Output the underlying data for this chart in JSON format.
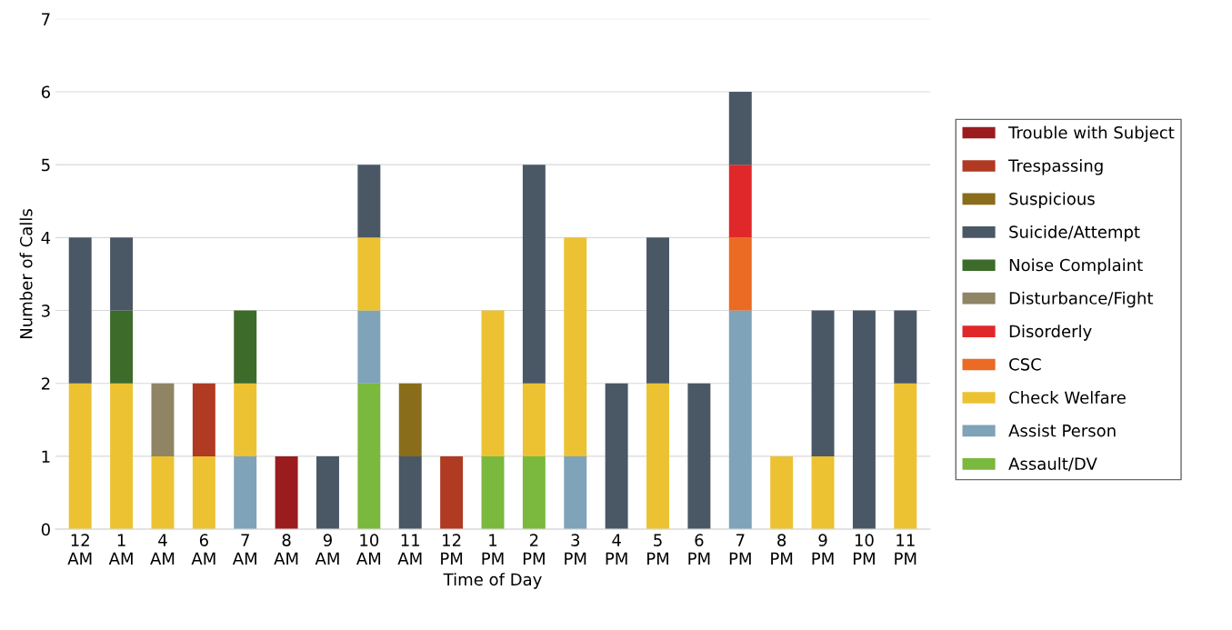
{
  "chart_data": {
    "type": "bar",
    "stacked": true,
    "xlabel": "Time of Day",
    "ylabel": "Number of Calls",
    "categories": [
      "12\nAM",
      "1\nAM",
      "4\nAM",
      "6\nAM",
      "7\nAM",
      "8\nAM",
      "9\nAM",
      "10\nAM",
      "11\nAM",
      "12\nPM",
      "1\nPM",
      "2\nPM",
      "3\nPM",
      "4\nPM",
      "5\nPM",
      "6\nPM",
      "7\nPM",
      "8\nPM",
      "9\nPM",
      "10\nPM",
      "11\nPM"
    ],
    "series": [
      {
        "name": "Assault/DV",
        "color": "#7ab83e",
        "values": [
          0,
          0,
          0,
          0,
          0,
          0,
          0,
          2,
          0,
          0,
          1,
          1,
          0,
          0,
          0,
          0,
          0,
          0,
          0,
          0,
          0
        ]
      },
      {
        "name": "Assist Person",
        "color": "#7fa3b8",
        "values": [
          0,
          0,
          0,
          0,
          1,
          0,
          0,
          1,
          0,
          0,
          0,
          0,
          1,
          0,
          0,
          0,
          3,
          0,
          0,
          0,
          0
        ]
      },
      {
        "name": "Check Welfare",
        "color": "#ecc232",
        "values": [
          2,
          2,
          1,
          1,
          1,
          0,
          0,
          1,
          0,
          0,
          2,
          1,
          3,
          0,
          2,
          0,
          0,
          1,
          1,
          0,
          2
        ]
      },
      {
        "name": "CSC",
        "color": "#eb6a24",
        "values": [
          0,
          0,
          0,
          0,
          0,
          0,
          0,
          0,
          0,
          0,
          0,
          0,
          0,
          0,
          0,
          0,
          1,
          0,
          0,
          0,
          0
        ]
      },
      {
        "name": "Disorderly",
        "color": "#e0282a",
        "values": [
          0,
          0,
          0,
          0,
          0,
          0,
          0,
          0,
          0,
          0,
          0,
          0,
          0,
          0,
          0,
          0,
          1,
          0,
          0,
          0,
          0
        ]
      },
      {
        "name": "Disturbance/Fight",
        "color": "#8f8565",
        "values": [
          0,
          0,
          1,
          0,
          0,
          0,
          0,
          0,
          0,
          0,
          0,
          0,
          0,
          0,
          0,
          0,
          0,
          0,
          0,
          0,
          0
        ]
      },
      {
        "name": "Noise Complaint",
        "color": "#3d6b2a",
        "values": [
          0,
          1,
          0,
          0,
          1,
          0,
          0,
          0,
          0,
          0,
          0,
          0,
          0,
          0,
          0,
          0,
          0,
          0,
          0,
          0,
          0
        ]
      },
      {
        "name": "Suicide/Attempt",
        "color": "#4a5866",
        "values": [
          2,
          1,
          0,
          0,
          0,
          0,
          1,
          1,
          1,
          0,
          0,
          3,
          0,
          2,
          2,
          2,
          1,
          0,
          2,
          3,
          1
        ]
      },
      {
        "name": "Suspicious",
        "color": "#8a6d1a",
        "values": [
          0,
          0,
          0,
          0,
          0,
          0,
          0,
          0,
          1,
          0,
          0,
          0,
          0,
          0,
          0,
          0,
          0,
          0,
          0,
          0,
          0
        ]
      },
      {
        "name": "Trespassing",
        "color": "#b03a22",
        "values": [
          0,
          0,
          0,
          1,
          0,
          0,
          0,
          0,
          0,
          1,
          0,
          0,
          0,
          0,
          0,
          0,
          0,
          0,
          0,
          0,
          0
        ]
      },
      {
        "name": "Trouble with Subject",
        "color": "#9b1c1f",
        "values": [
          0,
          0,
          0,
          0,
          0,
          1,
          0,
          0,
          0,
          0,
          0,
          0,
          0,
          0,
          0,
          0,
          0,
          0,
          0,
          0,
          0
        ]
      }
    ],
    "ylim": [
      0,
      7
    ],
    "yticks": [
      0,
      1,
      2,
      3,
      4,
      5,
      6,
      7
    ],
    "grid": "y",
    "legend": "right"
  }
}
